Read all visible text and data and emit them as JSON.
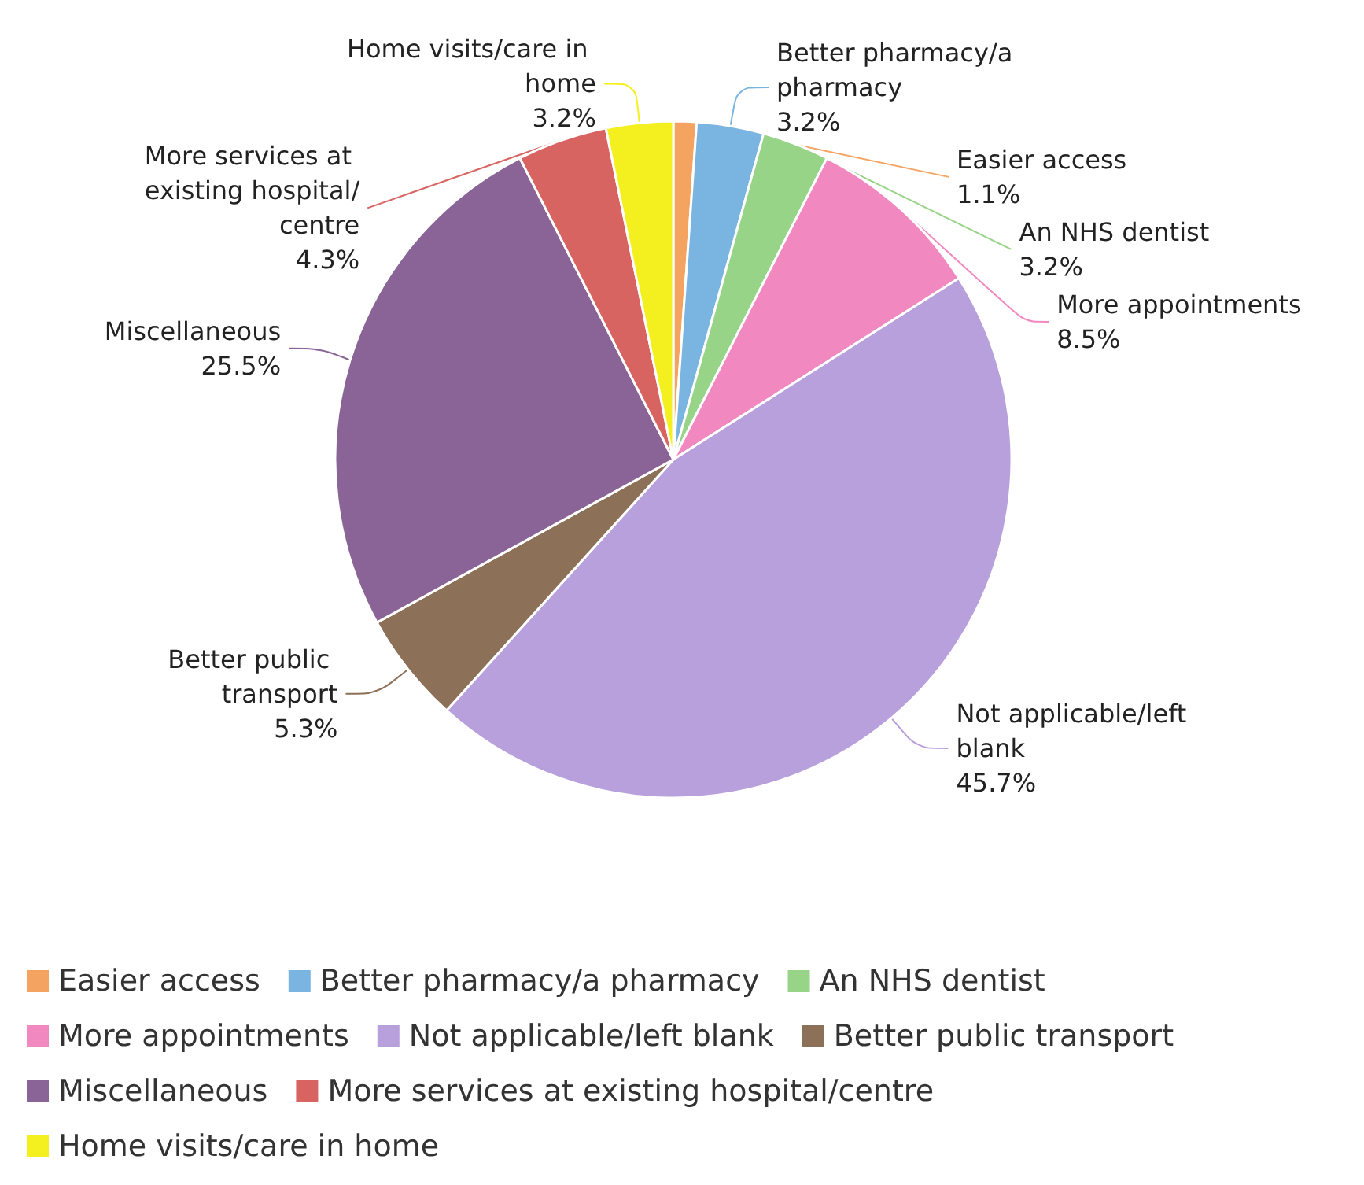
{
  "chart_data": {
    "type": "pie",
    "categories": [
      "Easier access",
      "Better pharmacy/a pharmacy",
      "An NHS dentist",
      "More appointments",
      "Not applicable/left blank",
      "Better public transport",
      "Miscellaneous",
      "More services at existing hospital/centre",
      "Home visits/care in home"
    ],
    "values": [
      1.1,
      3.2,
      3.2,
      8.5,
      45.7,
      5.3,
      25.5,
      4.3,
      3.2
    ],
    "value_labels": [
      "1.1%",
      "3.2%",
      "3.2%",
      "8.5%",
      "45.7%",
      "5.3%",
      "25.5%",
      "4.3%",
      "3.2%"
    ],
    "colors": [
      "#f4a460",
      "#7ab4e0",
      "#98d488",
      "#f288c0",
      "#b8a0dc",
      "#8c7058",
      "#8a6496",
      "#d86462",
      "#f4f020"
    ],
    "legend": "bottom"
  }
}
